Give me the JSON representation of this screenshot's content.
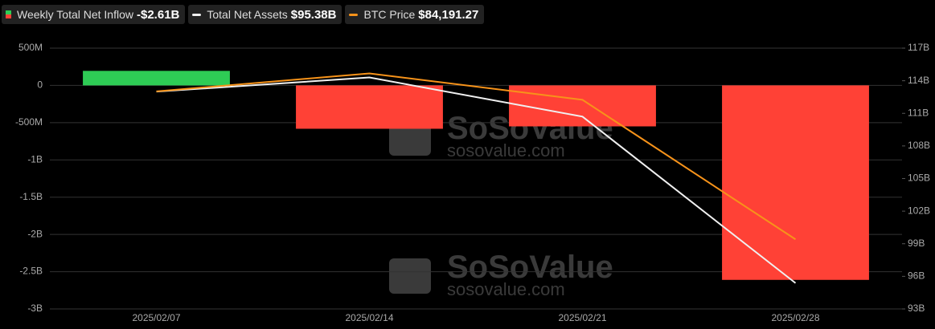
{
  "chart_data": {
    "type": "bar-line",
    "categories": [
      "2025/02/07",
      "2025/02/14",
      "2025/02/21",
      "2025/02/28"
    ],
    "series": [
      {
        "name": "Weekly Total Net Inflow",
        "legend_value": "-$2.61B",
        "type": "bar",
        "positive_color": "#2ecc55",
        "negative_color": "#ff4136",
        "values": [
          195,
          -582,
          -550,
          -2610
        ]
      },
      {
        "name": "Total Net Assets",
        "legend_value": "$95.38B",
        "type": "line",
        "axis": "y2",
        "color": "#f0f0f0",
        "values": [
          113.0,
          114.3,
          110.7,
          95.38
        ]
      },
      {
        "name": "BTC Price",
        "legend_value": "$84,191.27",
        "type": "line",
        "axis": "y3",
        "color": "#f7931a",
        "values": [
          96500,
          98000,
          95800,
          84191.27
        ]
      }
    ],
    "ylim": [
      -3000,
      500
    ],
    "yticks": [
      {
        "value": 500,
        "label": "500M"
      },
      0,
      {
        "value": -500,
        "label": "-500M"
      },
      {
        "value": -1000,
        "label": "-1B"
      },
      {
        "value": -1500,
        "label": "-1.5B"
      },
      {
        "value": -2000,
        "label": "-2B"
      },
      {
        "value": -2500,
        "label": "-2.5B"
      },
      {
        "value": -3000,
        "label": "-3B"
      }
    ],
    "y2lim": [
      93,
      117
    ],
    "y2ticks": [
      {
        "value": 117,
        "label": "117B"
      },
      {
        "value": 114,
        "label": "114B"
      },
      {
        "value": 111,
        "label": "111B"
      },
      {
        "value": 108,
        "label": "108B"
      },
      {
        "value": 105,
        "label": "105B"
      },
      {
        "value": 102,
        "label": "102B"
      },
      {
        "value": 99,
        "label": "99B"
      },
      {
        "value": 96,
        "label": "96B"
      },
      {
        "value": 93,
        "label": "93B"
      }
    ],
    "y3lim": [
      78400,
      100100
    ],
    "grid": true,
    "watermark": {
      "brand": "SoSoValue",
      "site": "sosovalue.com"
    }
  }
}
